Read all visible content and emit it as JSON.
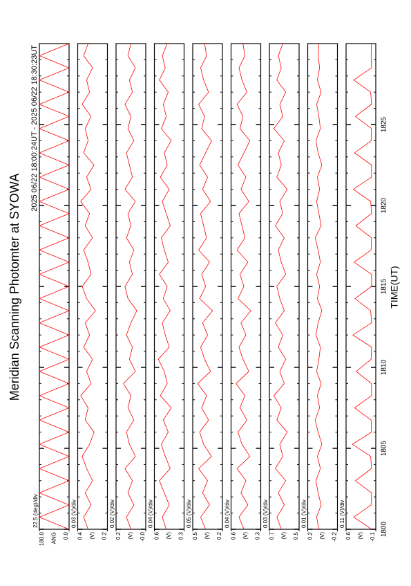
{
  "chart_data": {
    "type": "line",
    "title": "Meridian Scanning Photomter at SYOWA",
    "subtitle": "2025 06/22 18:00:24UT - 2025 06/22 18:30:23UT",
    "xlabel": "TIME(UT)",
    "xlim": [
      1800,
      1830
    ],
    "xticks": [
      1800,
      1805,
      1810,
      1815,
      1820,
      1825
    ],
    "xminorticks": [
      1800,
      1801,
      1802,
      1803,
      1804,
      1805,
      1806,
      1807,
      1808,
      1809,
      1810,
      1811,
      1812,
      1813,
      1814,
      1815,
      1816,
      1817,
      1818,
      1819,
      1820,
      1821,
      1822,
      1823,
      1824,
      1825,
      1826,
      1827,
      1828,
      1829,
      1830
    ],
    "x": [
      1800,
      1800.75,
      1801.5,
      1802.25,
      1803,
      1803.75,
      1804.5,
      1805.25,
      1806,
      1806.75,
      1807.5,
      1808.25,
      1809,
      1809.75,
      1810.5,
      1811.25,
      1812,
      1812.75,
      1813.5,
      1814.25,
      1815,
      1815.75,
      1816.5,
      1817.25,
      1818,
      1818.75,
      1819.5,
      1820.25,
      1821,
      1821.75,
      1822.5,
      1823.25,
      1824,
      1824.75,
      1825.5,
      1826.25,
      1827,
      1827.75,
      1828.5,
      1829.25,
      1830
    ],
    "series": [
      {
        "name": "ANG",
        "scale": "22.5 (deg)/div",
        "color": "#ff0000",
        "ylim": [
          0,
          180
        ],
        "yticks": [
          {
            "value": 0,
            "label": "0.0"
          },
          {
            "value": 180,
            "label": "180.0"
          }
        ],
        "values": [
          0,
          180,
          0,
          180,
          0,
          180,
          0,
          180,
          0,
          180,
          0,
          180,
          0,
          180,
          0,
          180,
          0,
          180,
          0,
          180,
          0,
          180,
          0,
          180,
          0,
          180,
          0,
          180,
          0,
          180,
          0,
          180,
          0,
          180,
          0,
          180,
          0,
          180,
          0,
          180,
          0
        ]
      },
      {
        "name": "(V)",
        "scale": "0.03 (V)/div",
        "color": "#ff0000",
        "ylim": [
          0.2,
          0.4
        ],
        "yticks": [
          0.2,
          0.4
        ],
        "values": [
          0.33,
          0.36,
          0.31,
          0.35,
          0.3,
          0.34,
          0.37,
          0.32,
          0.29,
          0.35,
          0.33,
          0.38,
          0.31,
          0.34,
          0.3,
          0.36,
          0.32,
          0.35,
          0.28,
          0.34,
          0.37,
          0.31,
          0.33,
          0.36,
          0.3,
          0.35,
          0.32,
          0.38,
          0.31,
          0.34,
          0.29,
          0.36,
          0.33,
          0.35,
          0.31,
          0.37,
          0.32,
          0.34,
          0.3,
          0.36,
          0.33
        ]
      },
      {
        "name": "(V)",
        "scale": "0.02 (V)/div",
        "color": "#ff0000",
        "ylim": [
          0,
          0.2
        ],
        "yticks": [
          {
            "value": 0,
            "label": "-0.0"
          },
          0.2
        ],
        "values": [
          0.1,
          0.13,
          0.08,
          0.12,
          0.09,
          0.14,
          0.07,
          0.11,
          0.13,
          0.08,
          0.12,
          0.1,
          0.15,
          0.07,
          0.11,
          0.09,
          0.13,
          0.1,
          0.06,
          0.12,
          0.14,
          0.09,
          0.11,
          0.08,
          0.13,
          0.1,
          0.12,
          0.07,
          0.14,
          0.09,
          0.11,
          0.13,
          0.08,
          0.12,
          0.1,
          0.14,
          0.09,
          0.11,
          0.07,
          0.12,
          0.1
        ]
      },
      {
        "name": "(V)",
        "scale": "0.04 (V)/div",
        "color": "#ff0000",
        "ylim": [
          0.3,
          0.6
        ],
        "yticks": [
          0.3,
          0.6
        ],
        "values": [
          0.48,
          0.52,
          0.45,
          0.5,
          0.55,
          0.44,
          0.49,
          0.53,
          0.46,
          0.51,
          0.43,
          0.54,
          0.47,
          0.5,
          0.56,
          0.45,
          0.49,
          0.52,
          0.44,
          0.51,
          0.47,
          0.55,
          0.46,
          0.5,
          0.53,
          0.44,
          0.48,
          0.52,
          0.45,
          0.54,
          0.47,
          0.5,
          0.43,
          0.53,
          0.48,
          0.51,
          0.46,
          0.55,
          0.49,
          0.52,
          0.47
        ]
      },
      {
        "name": "(V)",
        "scale": "0.05 (V)/div",
        "color": "#ff0000",
        "ylim": [
          0.2,
          0.5
        ],
        "yticks": [
          0.2,
          0.5
        ],
        "values": [
          0.37,
          0.42,
          0.33,
          0.4,
          0.35,
          0.44,
          0.31,
          0.39,
          0.43,
          0.34,
          0.41,
          0.36,
          0.45,
          0.32,
          0.38,
          0.42,
          0.35,
          0.4,
          0.3,
          0.43,
          0.37,
          0.41,
          0.33,
          0.44,
          0.36,
          0.39,
          0.42,
          0.32,
          0.4,
          0.35,
          0.43,
          0.37,
          0.31,
          0.41,
          0.38,
          0.44,
          0.34,
          0.39,
          0.42,
          0.36,
          0.38
        ]
      },
      {
        "name": "(V)",
        "scale": "0.04 (V)/div",
        "color": "#ff0000",
        "ylim": [
          0.3,
          0.6
        ],
        "yticks": [
          0.3,
          0.6
        ],
        "values": [
          0.47,
          0.52,
          0.43,
          0.5,
          0.45,
          0.54,
          0.41,
          0.49,
          0.53,
          0.44,
          0.51,
          0.46,
          0.55,
          0.42,
          0.48,
          0.52,
          0.45,
          0.5,
          0.4,
          0.53,
          0.47,
          0.51,
          0.43,
          0.54,
          0.46,
          0.49,
          0.52,
          0.42,
          0.5,
          0.45,
          0.53,
          0.47,
          0.41,
          0.51,
          0.48,
          0.54,
          0.44,
          0.49,
          0.52,
          0.46,
          0.48
        ]
      },
      {
        "name": "(V)",
        "scale": "0.03 (V)/div",
        "color": "#ff0000",
        "ylim": [
          0.5,
          0.7
        ],
        "yticks": [
          0.5,
          0.7
        ],
        "values": [
          0.62,
          0.65,
          0.6,
          0.64,
          0.59,
          0.66,
          0.61,
          0.63,
          0.58,
          0.65,
          0.62,
          0.67,
          0.6,
          0.63,
          0.59,
          0.64,
          0.61,
          0.66,
          0.6,
          0.63,
          0.65,
          0.59,
          0.62,
          0.64,
          0.6,
          0.66,
          0.61,
          0.63,
          0.58,
          0.65,
          0.62,
          0.64,
          0.6,
          0.67,
          0.61,
          0.63,
          0.59,
          0.65,
          0.62,
          0.64,
          0.61
        ]
      },
      {
        "name": "(V)",
        "scale": "0.01 (V)/div",
        "color": "#ff0000",
        "ylim": [
          -0.2,
          0.2
        ],
        "yticks": [
          -0.2,
          0.2
        ],
        "values": [
          0.05,
          0.08,
          0.02,
          0.06,
          0.09,
          0.03,
          0.07,
          0.01,
          0.06,
          0.1,
          0.04,
          0.07,
          0.02,
          0.08,
          0.05,
          0.03,
          0.09,
          0.06,
          0.01,
          0.07,
          0.04,
          0.08,
          0.03,
          0.06,
          0.1,
          0.02,
          0.05,
          0.08,
          0.04,
          0.07,
          0.01,
          0.06,
          0.09,
          0.03,
          0.05,
          0.08,
          0.02,
          0.07,
          0.04,
          0.06,
          0.05
        ]
      },
      {
        "name": "(V)",
        "scale": "0.11 (V)/div",
        "color": "#ff0000",
        "ylim": [
          -0.1,
          0.6
        ],
        "yticks": [
          -0.1,
          0.6
        ],
        "values": [
          0.0,
          0.42,
          0.01,
          0.0,
          0.38,
          0.0,
          0.02,
          0.45,
          0.0,
          0.01,
          0.4,
          0.0,
          0.0,
          0.36,
          0.01,
          0.0,
          0.44,
          0.0,
          0.02,
          0.39,
          0.0,
          0.0,
          0.41,
          0.01,
          0.0,
          0.37,
          0.0,
          0.02,
          0.43,
          0.0,
          0.0,
          0.4,
          0.01,
          0.0,
          0.38,
          0.0,
          0.02,
          0.42,
          0.0,
          0.01,
          0.0
        ]
      }
    ]
  }
}
